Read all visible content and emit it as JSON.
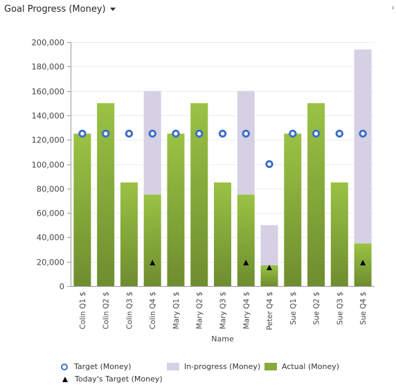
{
  "header": {
    "title": "Goal Progress (Money)",
    "expand_glyph": "›"
  },
  "colors": {
    "actual_light": "#9ac244",
    "actual_dark": "#6e8d2f",
    "in_progress": "#d6d0e4",
    "target": "#3c6fc9",
    "todays_target": "#000000"
  },
  "chart_data": {
    "type": "bar",
    "xlabel": "Name",
    "ylabel": "",
    "ylim": [
      0,
      200000
    ],
    "yticks": [
      "0",
      "20,000",
      "40,000",
      "60,000",
      "80,000",
      "100,000",
      "120,000",
      "140,000",
      "160,000",
      "180,000",
      "200,000"
    ],
    "grid": true,
    "legend_position": "bottom",
    "categories": [
      "Colin Q1 $",
      "Colin Q2 $",
      "Colin Q3 $",
      "Colin Q4 $",
      "Mary Q1 $",
      "Mary Q2 $",
      "Mary Q3 $",
      "Mary Q4 $",
      "Peter Q4 $",
      "Sue Q1 $",
      "Sue Q2 $",
      "Sue Q3 $",
      "Sue Q4 $"
    ],
    "series": [
      {
        "name": "Actual (Money)",
        "values": [
          125000,
          150000,
          85000,
          75000,
          125000,
          150000,
          85000,
          75000,
          17000,
          125000,
          150000,
          85000,
          35000
        ]
      },
      {
        "name": "In-progress (Money)",
        "values": [
          0,
          0,
          0,
          85000,
          0,
          0,
          0,
          85000,
          33000,
          0,
          0,
          0,
          159000
        ]
      },
      {
        "name": "Target (Money)",
        "values": [
          125000,
          125000,
          125000,
          125000,
          125000,
          125000,
          125000,
          125000,
          100000,
          125000,
          125000,
          125000,
          125000
        ]
      },
      {
        "name": "Today's Target (Money)",
        "values": [
          null,
          null,
          null,
          19000,
          null,
          null,
          null,
          19000,
          15000,
          null,
          null,
          null,
          19000
        ]
      }
    ]
  },
  "legend": {
    "target": "Target (Money)",
    "in_progress": "In-progress (Money)",
    "actual": "Actual (Money)",
    "todays_target": "Today's Target (Money)"
  }
}
